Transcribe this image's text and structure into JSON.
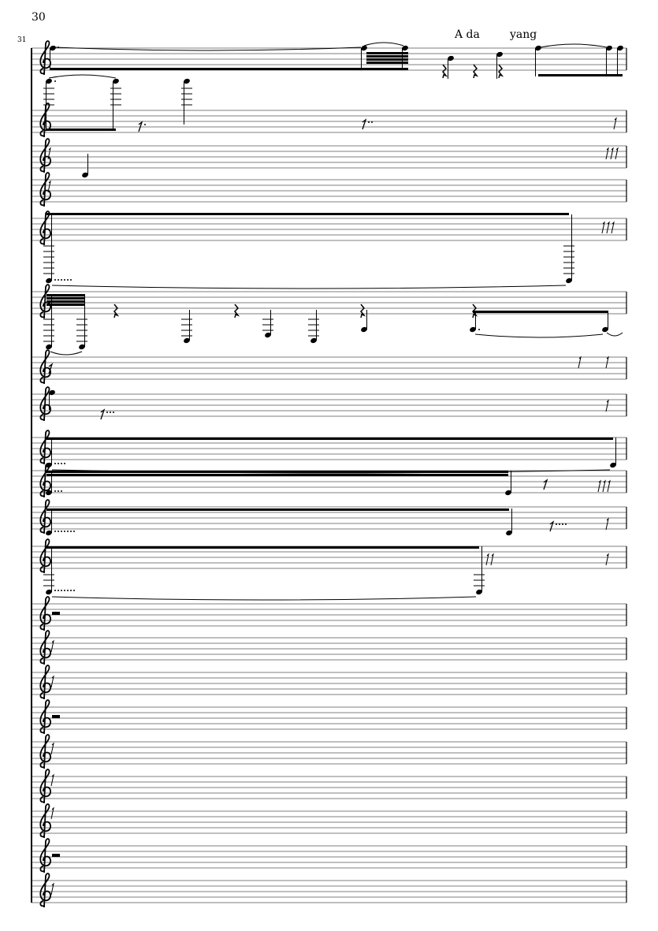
{
  "page": {
    "page_number": "30",
    "measure_number": "31",
    "staff_count": 21,
    "clef": "treble-clef",
    "lyrics": [
      "A da",
      "yang"
    ],
    "ink_color": "#000000",
    "staff_line_color": "#555555"
  }
}
